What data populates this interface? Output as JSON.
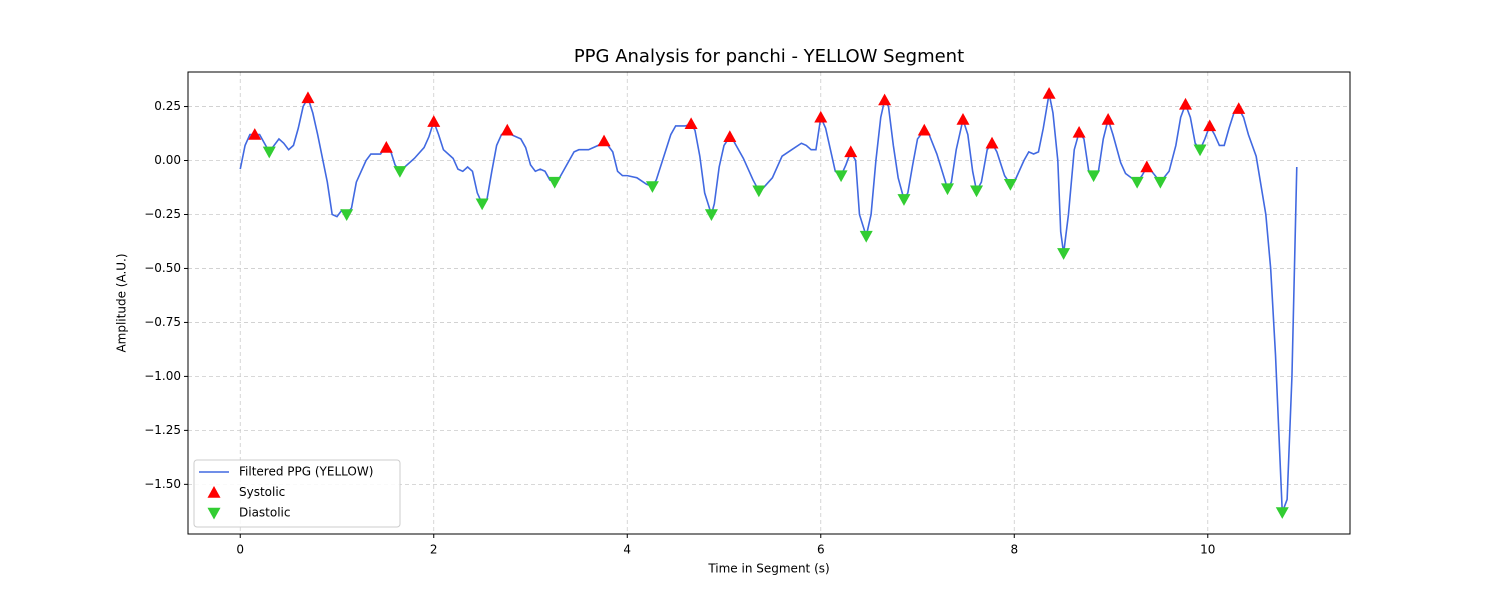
{
  "chart_data": {
    "type": "line",
    "title": "PPG Analysis for panchi - YELLOW Segment",
    "xlabel": "Time in Segment (s)",
    "ylabel": "Amplitude (A.U.)",
    "xlim": [
      -0.54,
      11.47
    ],
    "ylim": [
      -1.73,
      0.41
    ],
    "xticks": [
      0,
      2,
      4,
      6,
      8,
      10
    ],
    "yticks": [
      {
        "value": 0.25,
        "label": "0.25"
      },
      {
        "value": 0,
        "label": "0.00"
      },
      {
        "value": -0.25,
        "label": "−0.25"
      },
      {
        "value": -0.5,
        "label": "−0.50"
      },
      {
        "value": -0.75,
        "label": "−0.75"
      },
      {
        "value": -1,
        "label": "−1.00"
      },
      {
        "value": -1.25,
        "label": "−1.25"
      },
      {
        "value": -1.5,
        "label": "−1.50"
      }
    ],
    "grid": true,
    "legend": "lower left",
    "series": [
      {
        "name": "Filtered PPG (YELLOW)",
        "color": "#4169e1",
        "marker": "line",
        "x": [
          0,
          0.05,
          0.1,
          0.15,
          0.2,
          0.3,
          0.35,
          0.4,
          0.45,
          0.5,
          0.55,
          0.6,
          0.65,
          0.7,
          0.75,
          0.8,
          0.9,
          0.95,
          1.0,
          1.05,
          1.1,
          1.15,
          1.2,
          1.3,
          1.35,
          1.4,
          1.45,
          1.5,
          1.55,
          1.6,
          1.65,
          1.7,
          1.8,
          1.9,
          1.95,
          2.0,
          2.05,
          2.1,
          2.2,
          2.25,
          2.3,
          2.35,
          2.4,
          2.45,
          2.5,
          2.55,
          2.6,
          2.65,
          2.7,
          2.76,
          2.8,
          2.9,
          2.95,
          3.0,
          3.05,
          3.1,
          3.15,
          3.2,
          3.25,
          3.3,
          3.4,
          3.45,
          3.5,
          3.6,
          3.7,
          3.76,
          3.8,
          3.85,
          3.9,
          3.95,
          4.0,
          4.1,
          4.2,
          4.26,
          4.3,
          4.4,
          4.45,
          4.5,
          4.6,
          4.66,
          4.7,
          4.75,
          4.8,
          4.87,
          4.9,
          4.95,
          5.0,
          5.06,
          5.1,
          5.2,
          5.3,
          5.36,
          5.4,
          5.5,
          5.6,
          5.7,
          5.8,
          5.85,
          5.9,
          5.95,
          6.0,
          6.05,
          6.1,
          6.15,
          6.21,
          6.26,
          6.31,
          6.36,
          6.4,
          6.47,
          6.52,
          6.57,
          6.62,
          6.66,
          6.7,
          6.75,
          6.8,
          6.86,
          6.9,
          6.95,
          7.0,
          7.07,
          7.12,
          7.2,
          7.31,
          7.35,
          7.4,
          7.47,
          7.52,
          7.57,
          7.61,
          7.66,
          7.72,
          7.77,
          7.82,
          7.9,
          7.96,
          8.0,
          8.1,
          8.15,
          8.2,
          8.25,
          8.3,
          8.36,
          8.4,
          8.45,
          8.48,
          8.51,
          8.56,
          8.62,
          8.67,
          8.72,
          8.77,
          8.82,
          8.87,
          8.92,
          8.97,
          9.02,
          9.1,
          9.15,
          9.27,
          9.32,
          9.37,
          9.42,
          9.51,
          9.6,
          9.67,
          9.72,
          9.77,
          9.82,
          9.87,
          9.92,
          9.97,
          10.02,
          10.07,
          10.12,
          10.17,
          10.22,
          10.27,
          10.32,
          10.37,
          10.42,
          10.5,
          10.6,
          10.65,
          10.7,
          10.77,
          10.82,
          10.87,
          10.92
        ],
        "values": [
          -0.04,
          0.07,
          0.12,
          0.12,
          0.12,
          0.04,
          0.07,
          0.1,
          0.08,
          0.05,
          0.07,
          0.15,
          0.25,
          0.29,
          0.22,
          0.12,
          -0.1,
          -0.25,
          -0.26,
          -0.23,
          -0.25,
          -0.22,
          -0.1,
          0.0,
          0.03,
          0.03,
          0.03,
          0.06,
          0.05,
          -0.02,
          -0.05,
          -0.03,
          0.01,
          0.06,
          0.11,
          0.18,
          0.12,
          0.05,
          0.01,
          -0.04,
          -0.05,
          -0.03,
          -0.05,
          -0.15,
          -0.2,
          -0.18,
          -0.05,
          0.07,
          0.12,
          0.14,
          0.12,
          0.1,
          0.06,
          -0.02,
          -0.05,
          -0.04,
          -0.05,
          -0.09,
          -0.1,
          -0.08,
          0.0,
          0.04,
          0.05,
          0.05,
          0.07,
          0.09,
          0.07,
          0.04,
          -0.05,
          -0.07,
          -0.07,
          -0.08,
          -0.11,
          -0.12,
          -0.09,
          0.05,
          0.12,
          0.16,
          0.16,
          0.17,
          0.14,
          0.02,
          -0.15,
          -0.25,
          -0.2,
          -0.03,
          0.07,
          0.11,
          0.09,
          0.01,
          -0.09,
          -0.14,
          -0.13,
          -0.08,
          0.02,
          0.05,
          0.08,
          0.07,
          0.05,
          0.05,
          0.2,
          0.15,
          0.05,
          -0.05,
          -0.07,
          -0.02,
          0.04,
          0.0,
          -0.25,
          -0.35,
          -0.25,
          0.0,
          0.2,
          0.28,
          0.25,
          0.07,
          -0.08,
          -0.18,
          -0.15,
          -0.02,
          0.1,
          0.14,
          0.12,
          0.03,
          -0.13,
          -0.1,
          0.05,
          0.19,
          0.12,
          -0.05,
          -0.14,
          -0.1,
          0.05,
          0.08,
          0.04,
          -0.07,
          -0.11,
          -0.1,
          0.0,
          0.04,
          0.03,
          0.04,
          0.15,
          0.31,
          0.22,
          0.0,
          -0.33,
          -0.43,
          -0.25,
          0.05,
          0.13,
          0.1,
          -0.05,
          -0.07,
          -0.05,
          0.1,
          0.19,
          0.12,
          -0.01,
          -0.06,
          -0.1,
          -0.07,
          -0.03,
          -0.05,
          -0.1,
          -0.05,
          0.07,
          0.2,
          0.26,
          0.2,
          0.08,
          0.05,
          0.1,
          0.16,
          0.12,
          0.07,
          0.07,
          0.15,
          0.22,
          0.24,
          0.2,
          0.12,
          0.02,
          -0.25,
          -0.5,
          -0.9,
          -1.63,
          -1.57,
          -1.0,
          -0.03
        ]
      },
      {
        "name": "Systolic",
        "color": "#ff0000",
        "marker": "triangle-up",
        "x": [
          0.15,
          0.7,
          1.51,
          2.0,
          2.76,
          3.76,
          4.66,
          5.06,
          6.0,
          6.31,
          6.66,
          7.07,
          7.47,
          7.77,
          8.36,
          8.67,
          8.97,
          9.37,
          9.77,
          10.02,
          10.32
        ],
        "values": [
          0.12,
          0.29,
          0.06,
          0.18,
          0.14,
          0.09,
          0.17,
          0.11,
          0.2,
          0.04,
          0.28,
          0.14,
          0.19,
          0.08,
          0.31,
          0.13,
          0.19,
          -0.03,
          0.26,
          0.16,
          0.24
        ]
      },
      {
        "name": "Diastolic",
        "color": "#32cd32",
        "marker": "triangle-down",
        "x": [
          0.3,
          1.1,
          1.65,
          2.5,
          3.25,
          4.26,
          4.87,
          5.36,
          6.21,
          6.47,
          6.86,
          7.31,
          7.61,
          7.96,
          8.51,
          8.82,
          9.27,
          9.51,
          9.92,
          10.77
        ],
        "values": [
          0.04,
          -0.25,
          -0.05,
          -0.2,
          -0.1,
          -0.12,
          -0.25,
          -0.14,
          -0.07,
          -0.35,
          -0.18,
          -0.13,
          -0.14,
          -0.11,
          -0.43,
          -0.07,
          -0.1,
          -0.1,
          0.05,
          -1.63
        ]
      }
    ]
  }
}
